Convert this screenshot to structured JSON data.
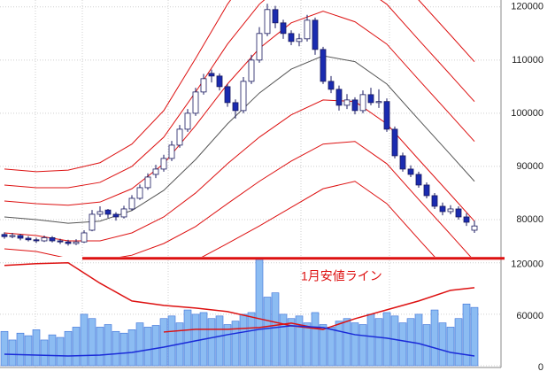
{
  "chart_data": {
    "type": "candlestick",
    "candles": [
      [
        77200,
        77600,
        76400,
        76800
      ],
      [
        76800,
        77500,
        76500,
        77000
      ],
      [
        77000,
        77300,
        76100,
        76500
      ],
      [
        76500,
        76900,
        75900,
        76200
      ],
      [
        76200,
        76600,
        75600,
        76000
      ],
      [
        76000,
        77000,
        75800,
        76600
      ],
      [
        76600,
        76900,
        75700,
        76000
      ],
      [
        76000,
        76400,
        75400,
        75800
      ],
      [
        75800,
        76200,
        75100,
        75500
      ],
      [
        75500,
        76300,
        75200,
        75800
      ],
      [
        75800,
        78000,
        75600,
        77500
      ],
      [
        78000,
        81800,
        77800,
        81000
      ],
      [
        81000,
        82500,
        80500,
        81500
      ],
      [
        81800,
        82000,
        80300,
        81000
      ],
      [
        81000,
        81400,
        79800,
        80500
      ],
      [
        80500,
        82600,
        80200,
        82000
      ],
      [
        82000,
        84600,
        81700,
        84000
      ],
      [
        84000,
        86600,
        83700,
        86000
      ],
      [
        86000,
        88700,
        85600,
        88000
      ],
      [
        88500,
        90300,
        87800,
        89500
      ],
      [
        89500,
        92200,
        89000,
        91500
      ],
      [
        91500,
        94800,
        91000,
        94000
      ],
      [
        94000,
        97800,
        93500,
        97000
      ],
      [
        97000,
        100800,
        96500,
        100000
      ],
      [
        100000,
        104800,
        99500,
        104000
      ],
      [
        104000,
        107400,
        103500,
        106500
      ],
      [
        107500,
        108200,
        105800,
        107000
      ],
      [
        107000,
        107500,
        104300,
        105000
      ],
      [
        105000,
        105500,
        101200,
        102000
      ],
      [
        102000,
        102600,
        99000,
        100500
      ],
      [
        100500,
        106800,
        100000,
        106000
      ],
      [
        106000,
        111000,
        105500,
        110000
      ],
      [
        110000,
        116200,
        109500,
        115000
      ],
      [
        115000,
        120600,
        114500,
        119500
      ],
      [
        119500,
        120200,
        116000,
        117000
      ],
      [
        117000,
        117600,
        114000,
        115000
      ],
      [
        115000,
        115600,
        112800,
        113500
      ],
      [
        113500,
        115000,
        112600,
        114000
      ],
      [
        114000,
        118500,
        113500,
        117500
      ],
      [
        117500,
        118000,
        111000,
        112000
      ],
      [
        112000,
        112500,
        105500,
        106000
      ],
      [
        106000,
        107000,
        103800,
        104500
      ],
      [
        104500,
        105200,
        100500,
        101500
      ],
      [
        101500,
        103600,
        100800,
        102500
      ],
      [
        102500,
        103000,
        99800,
        100500
      ],
      [
        100500,
        104300,
        100000,
        103500
      ],
      [
        103500,
        104800,
        101500,
        102000
      ],
      [
        102000,
        104500,
        101000,
        102200
      ],
      [
        102200,
        102800,
        96500,
        97000
      ],
      [
        97000,
        97500,
        91500,
        92000
      ],
      [
        92000,
        92600,
        89000,
        89500
      ],
      [
        89500,
        90200,
        88000,
        88500
      ],
      [
        88500,
        89000,
        86000,
        86500
      ],
      [
        86500,
        87000,
        84000,
        84500
      ],
      [
        84500,
        85000,
        82000,
        82500
      ],
      [
        82500,
        83200,
        80800,
        81500
      ],
      [
        81500,
        82700,
        81000,
        82000
      ],
      [
        82000,
        82500,
        80000,
        80500
      ],
      [
        80500,
        81200,
        78800,
        79500
      ],
      [
        78000,
        79800,
        77500,
        78800
      ]
    ],
    "up_color": "#ffffff",
    "down_color": "#1a2bb0",
    "wick_color": "#1a1a60",
    "ylim": [
      73000,
      121300
    ],
    "yticks": [
      80000,
      90000,
      100000,
      110000,
      120000
    ],
    "grid": true,
    "band_x": [
      0,
      4,
      8,
      12,
      16,
      20,
      24,
      28,
      32,
      36,
      40,
      44,
      48,
      52,
      56,
      59
    ],
    "bands": [
      {
        "color": "#555555",
        "values": [
          80500,
          80000,
          79300,
          79700,
          81700,
          85500,
          91300,
          98000,
          103800,
          108300,
          110800,
          109700,
          105500,
          98800,
          92200,
          87200
        ]
      },
      {
        "color": "#dd1111",
        "values": [
          83500,
          83000,
          82700,
          83300,
          85800,
          90500,
          97700,
          105500,
          112200,
          117000,
          119200,
          117200,
          113000,
          106300,
          99700,
          94700
        ]
      },
      {
        "color": "#dd1111",
        "values": [
          86500,
          86000,
          86000,
          87000,
          90000,
          95500,
          104000,
          113000,
          120500,
          125700,
          127500,
          124700,
          120500,
          113800,
          107200,
          102200
        ]
      },
      {
        "color": "#dd1111",
        "values": [
          89500,
          89000,
          89300,
          90700,
          94200,
          100500,
          110300,
          120500,
          128800,
          134300,
          135800,
          132200,
          128000,
          121300,
          114700,
          109700
        ]
      },
      {
        "color": "#dd1111",
        "values": [
          77500,
          77000,
          76000,
          76000,
          77500,
          80500,
          85000,
          90500,
          95500,
          99700,
          102500,
          102200,
          98000,
          91300,
          84700,
          79700
        ]
      },
      {
        "color": "#dd1111",
        "values": [
          74500,
          74000,
          72700,
          72300,
          73300,
          75500,
          78700,
          83000,
          87200,
          91000,
          94200,
          94700,
          90500,
          83800,
          77200,
          72200
        ]
      },
      {
        "color": "#dd1111",
        "values": [
          71500,
          71000,
          69300,
          68700,
          69200,
          70500,
          72300,
          75500,
          78800,
          82300,
          85800,
          87200,
          83000,
          76300,
          69700,
          64700
        ]
      }
    ],
    "annotation": {
      "text": "1月安値ライン",
      "value": 72700,
      "color": "#dd1111"
    },
    "volume": {
      "values": [
        40000,
        30000,
        38000,
        35000,
        42000,
        30000,
        36000,
        33000,
        40000,
        45000,
        60000,
        55000,
        45000,
        48000,
        40000,
        38000,
        42000,
        50000,
        45000,
        47000,
        55000,
        58000,
        50000,
        65000,
        60000,
        62000,
        55000,
        58000,
        48000,
        52000,
        60000,
        62000,
        124000,
        80000,
        85000,
        60000,
        55000,
        58000,
        50000,
        62000,
        48000,
        45000,
        52000,
        55000,
        50000,
        48000,
        60000,
        55000,
        62000,
        58000,
        50000,
        55000,
        60000,
        48000,
        65000,
        50000,
        45000,
        55000,
        72000,
        68000
      ],
      "color": "#8cbcf2",
      "edge_color": "#3a6fd8",
      "ylim": [
        0,
        127000
      ],
      "yticks": [
        0,
        60000,
        120000
      ],
      "lines": [
        {
          "color": "#dd1111",
          "values": [
            116900,
            119000,
            120000,
            96200,
            75500,
            70300,
            67200,
            63100,
            54800,
            46600,
            42400,
            54800,
            65200,
            75500,
            87900,
            91000
          ]
        },
        {
          "color": "#dd1111",
          "values": [
            null,
            null,
            null,
            null,
            null,
            39300,
            42400,
            42400,
            44500,
            49700,
            42400,
            null,
            null,
            null,
            null,
            null
          ]
        },
        {
          "color": "#1a2bd8",
          "values": [
            13400,
            12400,
            11400,
            12400,
            15500,
            21700,
            29000,
            36200,
            42400,
            46600,
            44500,
            36200,
            32100,
            25900,
            15500,
            11400
          ]
        }
      ]
    }
  }
}
